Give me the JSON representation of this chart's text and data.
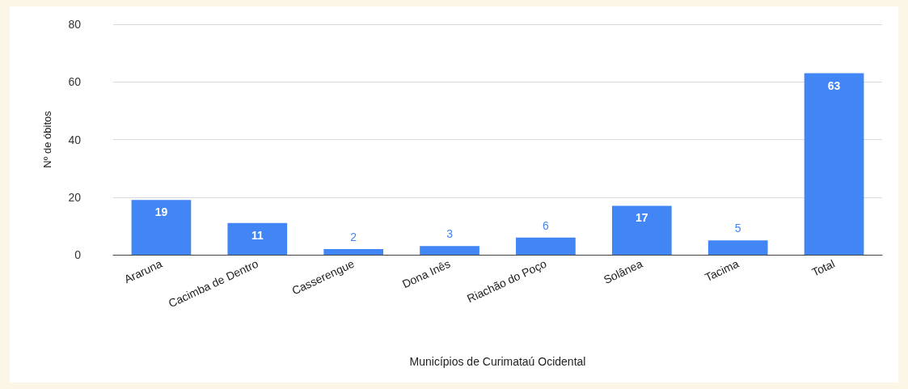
{
  "chart_data": {
    "type": "bar",
    "xlabel": "Municípios de Curimataú Ocidental",
    "ylabel": "Nº de óbitos",
    "categories": [
      "Araruna",
      "Cacimba de Dentro",
      "Casserengue",
      "Dona Inês",
      "Riachão do Poço",
      "Solânea",
      "Tacima",
      "Total"
    ],
    "values": [
      19,
      11,
      2,
      3,
      6,
      17,
      5,
      63
    ],
    "color": "#4285f4",
    "ylim": [
      0,
      80
    ],
    "yticks": [
      0,
      20,
      40,
      60,
      80
    ],
    "grid": "y",
    "data_labels": true
  }
}
